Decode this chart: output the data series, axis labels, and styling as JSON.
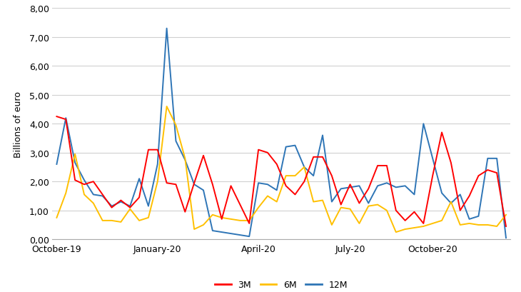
{
  "ylabel": "Billions of euro",
  "ylim": [
    0,
    8.0
  ],
  "yticks": [
    0.0,
    1.0,
    2.0,
    3.0,
    4.0,
    5.0,
    6.0,
    7.0,
    8.0
  ],
  "ytick_labels": [
    "0,00",
    "1,00",
    "2,00",
    "3,00",
    "4,00",
    "5,00",
    "6,00",
    "7,00",
    "8,00"
  ],
  "xtick_labels": [
    "October-19",
    "January-20",
    "April-20",
    "July-20",
    "October-20"
  ],
  "colors": {
    "3M": "#FF0000",
    "6M": "#FFC000",
    "12M": "#2E75B6"
  },
  "legend_labels": [
    "3M",
    "6M",
    "12M"
  ],
  "series_3M": [
    4.25,
    4.15,
    2.05,
    1.9,
    2.0,
    1.55,
    1.1,
    1.35,
    1.1,
    1.45,
    3.1,
    3.1,
    1.95,
    1.9,
    0.95,
    1.95,
    2.9,
    1.9,
    0.7,
    1.85,
    1.2,
    0.55,
    3.1,
    3.0,
    2.6,
    1.85,
    1.55,
    2.0,
    2.85,
    2.85,
    2.2,
    1.2,
    1.9,
    1.25,
    1.75,
    2.55,
    2.55,
    1.0,
    0.65,
    0.95,
    0.55,
    2.2,
    3.7,
    2.65,
    1.0,
    1.5,
    2.2,
    2.4,
    2.3,
    0.45
  ],
  "series_6M": [
    0.75,
    1.6,
    2.95,
    1.55,
    1.25,
    0.65,
    0.65,
    0.6,
    1.05,
    0.65,
    0.75,
    2.0,
    4.6,
    3.95,
    2.8,
    0.35,
    0.5,
    0.85,
    0.75,
    0.7,
    0.65,
    0.65,
    1.1,
    1.5,
    1.3,
    2.2,
    2.2,
    2.5,
    1.3,
    1.35,
    0.5,
    1.1,
    1.05,
    0.55,
    1.15,
    1.2,
    1.0,
    0.25,
    0.35,
    0.4,
    0.45,
    0.55,
    0.65,
    1.3,
    0.5,
    0.55,
    0.5,
    0.5,
    0.45,
    0.85
  ],
  "series_12M": [
    2.6,
    4.2,
    2.65,
    2.05,
    1.55,
    1.5,
    1.15,
    1.3,
    1.15,
    2.1,
    1.15,
    2.6,
    7.3,
    3.4,
    2.75,
    1.9,
    1.7,
    0.3,
    0.25,
    0.2,
    0.15,
    0.1,
    1.95,
    1.9,
    1.7,
    3.2,
    3.25,
    2.5,
    2.2,
    3.6,
    1.3,
    1.75,
    1.8,
    1.85,
    1.25,
    1.85,
    1.95,
    1.8,
    1.85,
    1.55,
    4.0,
    2.8,
    1.6,
    1.25,
    1.55,
    0.7,
    0.8,
    2.8,
    2.8,
    0.05
  ],
  "n_points": 50,
  "bg_color": "#FFFFFF",
  "grid_color": "#D0D0D0",
  "tick_positions": [
    0,
    11,
    22,
    32,
    41
  ]
}
